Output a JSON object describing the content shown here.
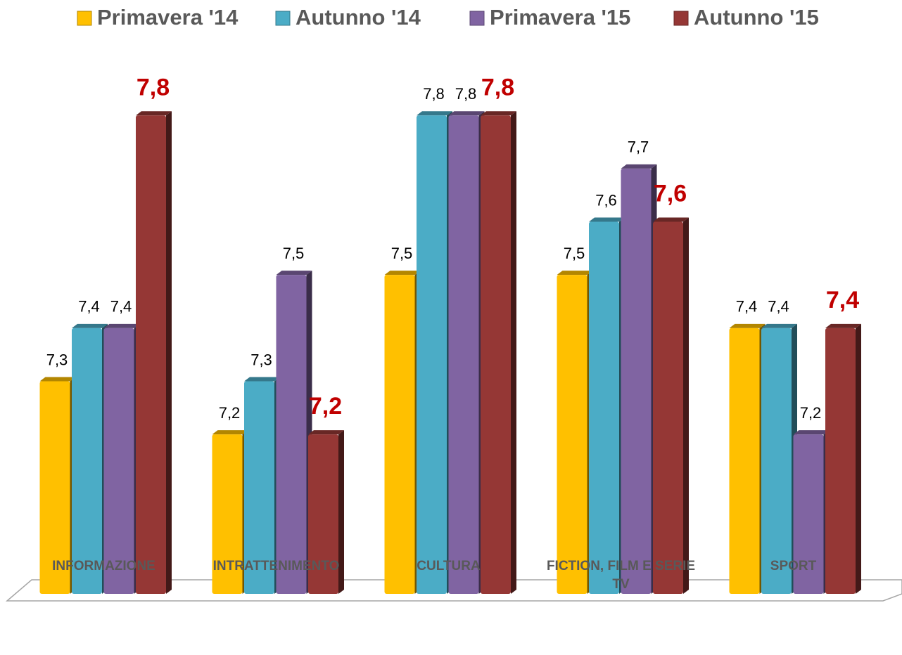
{
  "chart_data": {
    "type": "bar",
    "categories": [
      "INFORMAZIONE",
      "INTRATTENIMENTO",
      "CULTURA",
      "FICTION, FILM E SERIE TV",
      "SPORT"
    ],
    "series": [
      {
        "name": "Primavera '14",
        "color": "#FFC000",
        "values": [
          7.3,
          7.2,
          7.5,
          7.5,
          7.4
        ],
        "value_labels": [
          "7,3",
          "7,2",
          "7,5",
          "7,5",
          "7,4"
        ]
      },
      {
        "name": "Autunno '14",
        "color": "#4BACC6",
        "values": [
          7.4,
          7.3,
          7.8,
          7.6,
          7.4
        ],
        "value_labels": [
          "7,4",
          "7,3",
          "7,8",
          "7,6",
          "7,4"
        ]
      },
      {
        "name": "Primavera '15",
        "color": "#8064A2",
        "values": [
          7.4,
          7.5,
          7.8,
          7.7,
          7.2
        ],
        "value_labels": [
          "7,4",
          "7,5",
          "7,8",
          "7,7",
          "7,2"
        ]
      },
      {
        "name": "Autunno '15",
        "color": "#953735",
        "values": [
          7.8,
          7.2,
          7.8,
          7.6,
          7.4
        ],
        "value_labels": [
          "7,8",
          "7,2",
          "7,8",
          "7,6",
          "7,4"
        ]
      }
    ],
    "ylim": [
      6.9,
      8.0
    ],
    "legend": "top"
  }
}
